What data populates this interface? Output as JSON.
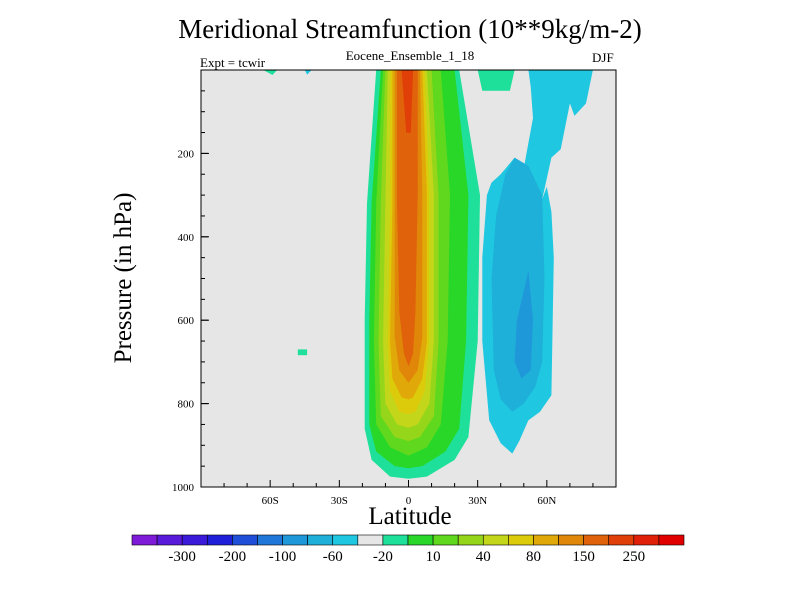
{
  "chart_data": {
    "type": "heatmap",
    "title": "Meridional Streamfunction (10**9kg/m-2)",
    "subtitle": "Eocene_Ensemble_1_18",
    "experiment_label": "Expt = tcwir",
    "season": "DJF",
    "xlabel": "Latitude",
    "ylabel": "Pressure (in hPa)",
    "xlim": [
      -90,
      90
    ],
    "ylim": [
      1000,
      0
    ],
    "y_reversed": true,
    "x_ticks": [
      {
        "value": -60,
        "label": "60S"
      },
      {
        "value": -30,
        "label": "30S"
      },
      {
        "value": 0,
        "label": "0"
      },
      {
        "value": 30,
        "label": "30N"
      },
      {
        "value": 60,
        "label": "60N"
      }
    ],
    "y_ticks": [
      {
        "value": 200,
        "label": "200"
      },
      {
        "value": 400,
        "label": "400"
      },
      {
        "value": 600,
        "label": "600"
      },
      {
        "value": 800,
        "label": "800"
      },
      {
        "value": 1000,
        "label": "1000"
      }
    ],
    "background_color": "#e6e6e6",
    "colorbar": {
      "colors": [
        "#7d1bd9",
        "#5a1ad9",
        "#3c1ada",
        "#1f1fd9",
        "#1f4fd9",
        "#1f78d9",
        "#1f98d9",
        "#1fb0d9",
        "#1fc8e0",
        "#e6e6e6",
        "#1ee09a",
        "#28d728",
        "#5fd81e",
        "#96d61a",
        "#c4d61a",
        "#dccb0a",
        "#e0a808",
        "#e08608",
        "#e0620a",
        "#e04008",
        "#e02008",
        "#e00000"
      ],
      "labels": [
        "-300",
        "-200",
        "-100",
        "-60",
        "-20",
        "10",
        "40",
        "80",
        "150",
        "250"
      ]
    },
    "contour_regions": [
      {
        "color": "#1ee09a",
        "points": [
          [
            -63,
            0
          ],
          [
            -57,
            0
          ],
          [
            -59,
            12
          ]
        ]
      },
      {
        "color": "#1fc8e0",
        "points": [
          [
            -45,
            0
          ],
          [
            -42,
            0
          ],
          [
            -44,
            11
          ]
        ]
      },
      {
        "color": "#1ee09a",
        "points": [
          [
            -48,
            670
          ],
          [
            -44,
            670
          ],
          [
            -44,
            684
          ],
          [
            -48,
            684
          ]
        ]
      },
      {
        "color": "#1ee09a",
        "points": [
          [
            -14,
            0
          ],
          [
            22,
            0
          ],
          [
            31,
            300
          ],
          [
            30,
            650
          ],
          [
            26,
            880
          ],
          [
            20,
            935
          ],
          [
            8,
            975
          ],
          [
            0,
            980
          ],
          [
            -8,
            975
          ],
          [
            -16,
            935
          ],
          [
            -19,
            860
          ],
          [
            -19,
            600
          ],
          [
            -18,
            320
          ]
        ]
      },
      {
        "color": "#28d728",
        "points": [
          [
            -12,
            0
          ],
          [
            20,
            0
          ],
          [
            26,
            300
          ],
          [
            25,
            650
          ],
          [
            22,
            860
          ],
          [
            16,
            915
          ],
          [
            6,
            950
          ],
          [
            0,
            955
          ],
          [
            -6,
            950
          ],
          [
            -14,
            915
          ],
          [
            -17,
            850
          ],
          [
            -17,
            600
          ],
          [
            -16,
            320
          ]
        ]
      },
      {
        "color": "#5fd81e",
        "points": [
          [
            -11,
            0
          ],
          [
            14,
            0
          ],
          [
            18,
            300
          ],
          [
            17,
            650
          ],
          [
            14,
            850
          ],
          [
            8,
            905
          ],
          [
            0,
            925
          ],
          [
            -8,
            905
          ],
          [
            -14,
            850
          ],
          [
            -15,
            650
          ],
          [
            -14,
            320
          ]
        ]
      },
      {
        "color": "#96d61a",
        "points": [
          [
            -10,
            0
          ],
          [
            10,
            0
          ],
          [
            13,
            300
          ],
          [
            13,
            650
          ],
          [
            11,
            830
          ],
          [
            5,
            880
          ],
          [
            0,
            890
          ],
          [
            -6,
            880
          ],
          [
            -12,
            830
          ],
          [
            -13,
            650
          ],
          [
            -12,
            320
          ]
        ]
      },
      {
        "color": "#c4d61a",
        "points": [
          [
            -9,
            0
          ],
          [
            8,
            0
          ],
          [
            11,
            300
          ],
          [
            11,
            650
          ],
          [
            9,
            800
          ],
          [
            4,
            850
          ],
          [
            0,
            858
          ],
          [
            -5,
            850
          ],
          [
            -10,
            800
          ],
          [
            -11,
            650
          ],
          [
            -10,
            320
          ]
        ]
      },
      {
        "color": "#dccb0a",
        "points": [
          [
            -8,
            0
          ],
          [
            7,
            0
          ],
          [
            9,
            300
          ],
          [
            9,
            650
          ],
          [
            7,
            770
          ],
          [
            3,
            820
          ],
          [
            0,
            825
          ],
          [
            -4,
            820
          ],
          [
            -8,
            770
          ],
          [
            -9,
            650
          ],
          [
            -8,
            320
          ]
        ]
      },
      {
        "color": "#e0a808",
        "points": [
          [
            -7,
            0
          ],
          [
            6,
            0
          ],
          [
            8,
            300
          ],
          [
            8,
            650
          ],
          [
            6,
            740
          ],
          [
            2,
            785
          ],
          [
            0,
            790
          ],
          [
            -3,
            785
          ],
          [
            -7,
            740
          ],
          [
            -8,
            650
          ],
          [
            -7,
            320
          ]
        ]
      },
      {
        "color": "#e08608",
        "points": [
          [
            -6,
            0
          ],
          [
            5,
            0
          ],
          [
            6,
            300
          ],
          [
            6,
            640
          ],
          [
            4,
            720
          ],
          [
            0,
            750
          ],
          [
            -4,
            720
          ],
          [
            -6,
            640
          ],
          [
            -6,
            320
          ]
        ]
      },
      {
        "color": "#e0620a",
        "points": [
          [
            -5,
            0
          ],
          [
            4,
            0
          ],
          [
            4,
            300
          ],
          [
            3,
            580
          ],
          [
            2,
            680
          ],
          [
            0,
            710
          ],
          [
            -2,
            680
          ],
          [
            -4,
            580
          ],
          [
            -5,
            320
          ]
        ]
      },
      {
        "color": "#e04008",
        "points": [
          [
            -3,
            0
          ],
          [
            2,
            0
          ],
          [
            1,
            150
          ],
          [
            -1,
            150
          ]
        ]
      },
      {
        "color": "#1ee09a",
        "points": [
          [
            30,
            0
          ],
          [
            46,
            0
          ],
          [
            44,
            50
          ],
          [
            32,
            50
          ]
        ]
      },
      {
        "color": "#1fc8e0",
        "points": [
          [
            52,
            0
          ],
          [
            80,
            0
          ],
          [
            77,
            80
          ],
          [
            72,
            110
          ],
          [
            70,
            80
          ],
          [
            66,
            190
          ],
          [
            62,
            210
          ],
          [
            58,
            310
          ],
          [
            54,
            115
          ],
          [
            50,
            235
          ],
          [
            46,
            210
          ],
          [
            40,
            250
          ],
          [
            36,
            270
          ],
          [
            34,
            300
          ],
          [
            32,
            450
          ],
          [
            32,
            650
          ],
          [
            35,
            840
          ],
          [
            40,
            895
          ],
          [
            45,
            920
          ],
          [
            48,
            890
          ],
          [
            52,
            840
          ],
          [
            57,
            820
          ],
          [
            62,
            780
          ],
          [
            63,
            450
          ],
          [
            62,
            340
          ],
          [
            60,
            280
          ],
          [
            58,
            310
          ],
          [
            54,
            115
          ],
          [
            53,
            40
          ]
        ]
      },
      {
        "color": "#1fb0d9",
        "points": [
          [
            46,
            210
          ],
          [
            52,
            230
          ],
          [
            58,
            300
          ],
          [
            59,
            500
          ],
          [
            58,
            700
          ],
          [
            55,
            760
          ],
          [
            50,
            800
          ],
          [
            45,
            820
          ],
          [
            40,
            790
          ],
          [
            37,
            720
          ],
          [
            36,
            500
          ],
          [
            38,
            350
          ],
          [
            42,
            250
          ]
        ]
      },
      {
        "color": "#1f98d9",
        "points": [
          [
            52,
            480
          ],
          [
            54,
            600
          ],
          [
            53,
            720
          ],
          [
            49,
            740
          ],
          [
            46,
            700
          ],
          [
            47,
            600
          ],
          [
            50,
            530
          ]
        ]
      }
    ]
  }
}
